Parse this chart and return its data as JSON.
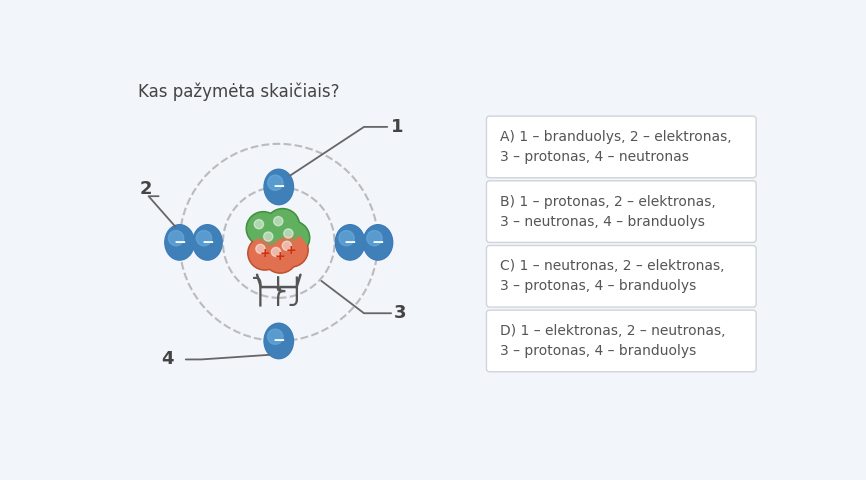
{
  "title": "Kas pažymėta skaičiais?",
  "background_color": "#f2f5f9",
  "panel_color": "#ffffff",
  "title_color": "#444444",
  "title_fontsize": 12,
  "electron_color_top": "#6aaee0",
  "electron_color_bot": "#4080b8",
  "electron_border": "#3a7abf",
  "proton_color": "#e07050",
  "proton_border": "#c05030",
  "neutron_color": "#60b060",
  "neutron_border": "#409040",
  "orbit_color": "#bbbbbb",
  "line_color": "#666666",
  "options": [
    {
      "line1": "A) 1 – branduolys, 2 – elektronas,",
      "line2": "3 – protonas, 4 – neutronas"
    },
    {
      "line1": "B) 1 – protonas, 2 – elektronas,",
      "line2": "3 – neutronas, 4 – branduolys"
    },
    {
      "line1": "C) 1 – neutronas, 2 – elektronas,",
      "line2": "3 – protonas, 4 – branduolys"
    },
    {
      "line1": "D) 1 – elektronas, 2 – neutronas,",
      "line2": "3 – protonas, 4 – branduolys"
    }
  ]
}
